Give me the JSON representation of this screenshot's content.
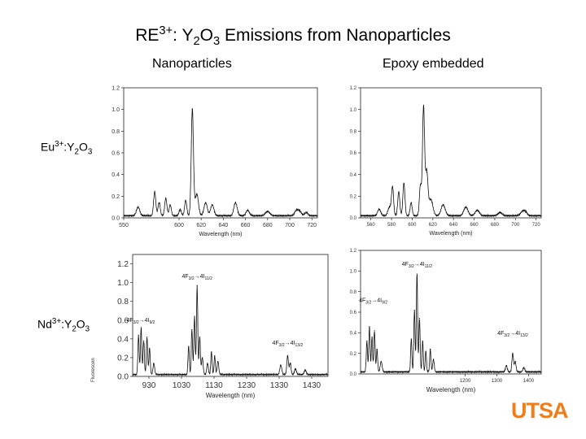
{
  "title": {
    "pre": "RE",
    "sup": "3+",
    "mid": ": Y",
    "sub1": "2",
    "o": "O",
    "sub2": "3",
    "post": " Emissions from Nanoparticles"
  },
  "columns": {
    "left": "Nanoparticles",
    "right": "Epoxy embedded"
  },
  "rows": {
    "eu": {
      "pre": "Eu",
      "sup": "3+",
      "mid": ":Y",
      "sub1": "2",
      "o": "O",
      "sub2": "3"
    },
    "nd": {
      "pre": "Nd",
      "sup": "3+",
      "mid": ":Y",
      "sub1": "2",
      "o": "O",
      "sub2": "3"
    }
  },
  "logo": "UTSA",
  "side_ylabel": "Fluorescen",
  "chart_data": [
    {
      "id": "eu-nano",
      "type": "line",
      "xlabel": "Wavelength (nm)",
      "ylabel": "",
      "xlim": [
        550,
        725
      ],
      "ylim": [
        0,
        1.2
      ],
      "xticks": [
        550,
        600,
        620,
        640,
        660,
        680,
        700,
        720
      ],
      "xtick_labels": [
        "550",
        "600",
        "620",
        "640",
        "660",
        "680",
        "700",
        "720"
      ],
      "yticks": [
        0.0,
        0.2,
        0.4,
        0.6,
        0.8,
        1.0,
        1.2
      ],
      "ytick_labels": [
        "0.0",
        "0.2",
        "0.4",
        "0.6",
        "0.8",
        "1.0",
        "1.2"
      ],
      "baseline": 0.02,
      "peaks": [
        {
          "x": 563,
          "h": 0.08,
          "w": 1.5
        },
        {
          "x": 578,
          "h": 0.22,
          "w": 1.0
        },
        {
          "x": 582,
          "h": 0.12,
          "w": 1.0
        },
        {
          "x": 588,
          "h": 0.16,
          "w": 1.0
        },
        {
          "x": 592,
          "h": 0.1,
          "w": 1.0
        },
        {
          "x": 601,
          "h": 0.06,
          "w": 1.0
        },
        {
          "x": 606,
          "h": 0.14,
          "w": 1.0
        },
        {
          "x": 612,
          "h": 0.98,
          "w": 1.0
        },
        {
          "x": 616,
          "h": 0.2,
          "w": 1.5
        },
        {
          "x": 624,
          "h": 0.12,
          "w": 1.5
        },
        {
          "x": 630,
          "h": 0.1,
          "w": 1.5
        },
        {
          "x": 651,
          "h": 0.12,
          "w": 1.5
        },
        {
          "x": 662,
          "h": 0.05,
          "w": 1.5
        },
        {
          "x": 680,
          "h": 0.04,
          "w": 2.0
        },
        {
          "x": 706,
          "h": 0.05,
          "w": 1.5
        },
        {
          "x": 709,
          "h": 0.04,
          "w": 1.5
        },
        {
          "x": 715,
          "h": 0.03,
          "w": 1.5
        }
      ]
    },
    {
      "id": "eu-epoxy",
      "type": "line",
      "xlabel": "Wavelength (nm)",
      "ylabel": "",
      "xlim": [
        550,
        725
      ],
      "ylim": [
        0,
        1.2
      ],
      "xticks": [
        560,
        580,
        600,
        620,
        640,
        660,
        680,
        700,
        720
      ],
      "xtick_labels": [
        "560",
        "580",
        "600",
        "620",
        "640",
        "660",
        "680",
        "700",
        "720"
      ],
      "yticks": [
        0.0,
        0.2,
        0.4,
        0.6,
        0.8,
        1.0,
        1.2
      ],
      "ytick_labels": [
        "0.0",
        "0.2",
        "0.4",
        "0.6",
        "0.8",
        "1.0",
        "1.2"
      ],
      "baseline": 0.02,
      "peaks": [
        {
          "x": 568,
          "h": 0.06,
          "w": 1.5
        },
        {
          "x": 578,
          "h": 0.08,
          "w": 1.5
        },
        {
          "x": 581,
          "h": 0.26,
          "w": 1.0
        },
        {
          "x": 587,
          "h": 0.22,
          "w": 1.0
        },
        {
          "x": 592,
          "h": 0.3,
          "w": 1.0
        },
        {
          "x": 599,
          "h": 0.12,
          "w": 1.0
        },
        {
          "x": 608,
          "h": 0.28,
          "w": 1.0
        },
        {
          "x": 611,
          "h": 1.0,
          "w": 1.0
        },
        {
          "x": 614,
          "h": 0.4,
          "w": 1.2
        },
        {
          "x": 618,
          "h": 0.15,
          "w": 2.0
        },
        {
          "x": 630,
          "h": 0.1,
          "w": 2.0
        },
        {
          "x": 652,
          "h": 0.08,
          "w": 2.0
        },
        {
          "x": 663,
          "h": 0.05,
          "w": 2.0
        },
        {
          "x": 685,
          "h": 0.03,
          "w": 2.0
        },
        {
          "x": 707,
          "h": 0.04,
          "w": 2.0
        },
        {
          "x": 710,
          "h": 0.03,
          "w": 1.5
        }
      ]
    },
    {
      "id": "nd-nano",
      "type": "line",
      "xlabel": "Wavelength (nm)",
      "ylabel": "",
      "xlim": [
        880,
        1480
      ],
      "ylim": [
        0,
        1.3
      ],
      "xticks": [
        930,
        1030,
        1130,
        1230,
        1330,
        1430
      ],
      "xtick_labels": [
        "930",
        "1030",
        "1130",
        "1230",
        "1330",
        "1430"
      ],
      "yticks": [
        0.0,
        0.2,
        0.4,
        0.6,
        0.8,
        1.0,
        1.2
      ],
      "ytick_labels": [
        "0.0",
        "0.2",
        "0.4",
        "0.6",
        "0.8",
        "1.0",
        "1.2"
      ],
      "baseline": 0.02,
      "peaks": [
        {
          "x": 898,
          "h": 0.42,
          "w": 2.0
        },
        {
          "x": 906,
          "h": 0.5,
          "w": 2.0
        },
        {
          "x": 914,
          "h": 0.36,
          "w": 2.0
        },
        {
          "x": 924,
          "h": 0.4,
          "w": 2.0
        },
        {
          "x": 932,
          "h": 0.28,
          "w": 2.0
        },
        {
          "x": 945,
          "h": 0.12,
          "w": 2.5
        },
        {
          "x": 1052,
          "h": 0.3,
          "w": 2.0
        },
        {
          "x": 1062,
          "h": 0.48,
          "w": 2.0
        },
        {
          "x": 1070,
          "h": 0.62,
          "w": 2.0
        },
        {
          "x": 1078,
          "h": 0.95,
          "w": 2.0
        },
        {
          "x": 1086,
          "h": 0.4,
          "w": 2.0
        },
        {
          "x": 1094,
          "h": 0.18,
          "w": 2.5
        },
        {
          "x": 1110,
          "h": 0.12,
          "w": 2.5
        },
        {
          "x": 1122,
          "h": 0.24,
          "w": 2.0
        },
        {
          "x": 1132,
          "h": 0.2,
          "w": 2.0
        },
        {
          "x": 1142,
          "h": 0.14,
          "w": 2.5
        },
        {
          "x": 1335,
          "h": 0.1,
          "w": 3.0
        },
        {
          "x": 1356,
          "h": 0.2,
          "w": 2.5
        },
        {
          "x": 1364,
          "h": 0.12,
          "w": 2.5
        },
        {
          "x": 1380,
          "h": 0.06,
          "w": 3.0
        },
        {
          "x": 1410,
          "h": 0.05,
          "w": 3.0
        }
      ]
    },
    {
      "id": "nd-epoxy",
      "type": "line",
      "xlabel": "Wavelength (nm)",
      "ylabel": "",
      "xlim": [
        870,
        1440
      ],
      "ylim": [
        0,
        1.2
      ],
      "xticks": [
        1200,
        1300,
        1400
      ],
      "xtick_labels": [
        "1200",
        "1300",
        "1400"
      ],
      "yticks": [
        0.0,
        0.2,
        0.4,
        0.6,
        0.8,
        1.0,
        1.2
      ],
      "ytick_labels": [
        "0.0",
        "0.2",
        "0.4",
        "0.6",
        "0.8",
        "1.0",
        "1.2"
      ],
      "baseline": 0.02,
      "peaks": [
        {
          "x": 890,
          "h": 0.3,
          "w": 2.0
        },
        {
          "x": 898,
          "h": 0.44,
          "w": 2.0
        },
        {
          "x": 906,
          "h": 0.34,
          "w": 2.0
        },
        {
          "x": 914,
          "h": 0.4,
          "w": 2.0
        },
        {
          "x": 922,
          "h": 0.22,
          "w": 2.0
        },
        {
          "x": 935,
          "h": 0.1,
          "w": 3.0
        },
        {
          "x": 1030,
          "h": 0.32,
          "w": 2.0
        },
        {
          "x": 1040,
          "h": 0.6,
          "w": 2.0
        },
        {
          "x": 1048,
          "h": 0.95,
          "w": 2.0
        },
        {
          "x": 1056,
          "h": 0.52,
          "w": 2.0
        },
        {
          "x": 1066,
          "h": 0.3,
          "w": 2.0
        },
        {
          "x": 1076,
          "h": 0.2,
          "w": 2.0
        },
        {
          "x": 1090,
          "h": 0.22,
          "w": 2.0
        },
        {
          "x": 1100,
          "h": 0.12,
          "w": 2.5
        },
        {
          "x": 1330,
          "h": 0.06,
          "w": 3.0
        },
        {
          "x": 1350,
          "h": 0.18,
          "w": 2.5
        },
        {
          "x": 1358,
          "h": 0.1,
          "w": 2.5
        },
        {
          "x": 1385,
          "h": 0.04,
          "w": 3.0
        }
      ],
      "annotations": [
        {
          "x": 1048,
          "y": 1.05,
          "pre": "4F",
          "sub": "3/2",
          "post": "→4I",
          "sub2": "11/2"
        },
        {
          "x": 910,
          "y": 0.7,
          "pre": "4F",
          "sub": "3/2",
          "post": "→4I",
          "sub2": "9/2"
        },
        {
          "x": 1350,
          "y": 0.38,
          "pre": "4F",
          "sub": "3/2",
          "post": "→4I",
          "sub2": "13/2"
        }
      ]
    }
  ],
  "nd_nano_annotations": [
    {
      "x": 1078,
      "y": 1.05,
      "pre": "4F",
      "sub": "3/2",
      "post": "→4I",
      "sub2": "11/2"
    },
    {
      "x": 905,
      "y": 0.58,
      "pre": "4F",
      "sub": "3/2",
      "post": "→4I",
      "sub2": "9/2"
    },
    {
      "x": 1356,
      "y": 0.34,
      "pre": "4F",
      "sub": "3/2",
      "post": "→4I",
      "sub2": "13/2"
    }
  ]
}
